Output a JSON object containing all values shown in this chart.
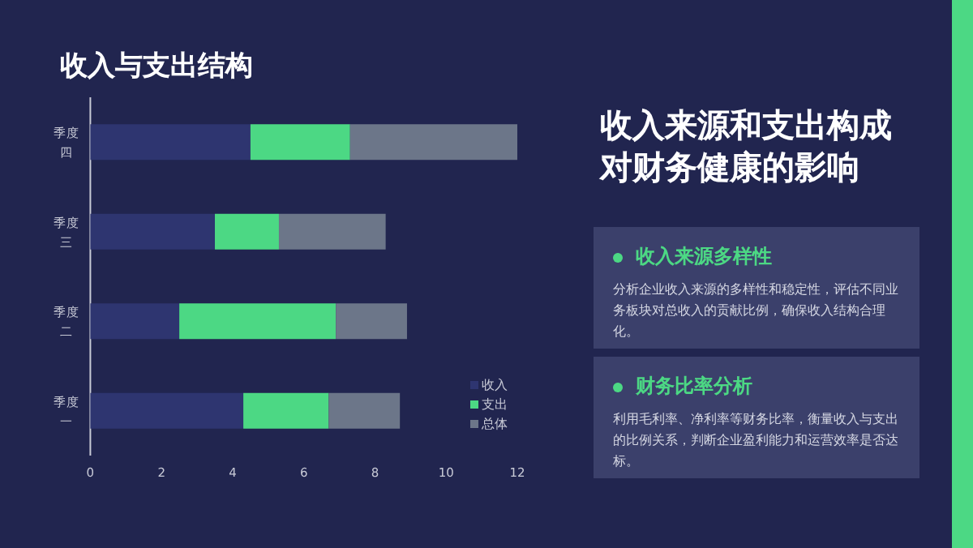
{
  "chart_data": [
    {
      "type": "bar",
      "title": "收入与支出结构",
      "orientation": "horizontal",
      "stacked": true,
      "categories": [
        "季度四",
        "季度三",
        "季度二",
        "季度一"
      ],
      "series": [
        {
          "name": "收入",
          "color": "#2e3570",
          "values": [
            4.5,
            3.5,
            2.5,
            4.3
          ]
        },
        {
          "name": "支出",
          "color": "#4cd884",
          "values": [
            2.8,
            1.8,
            4.4,
            2.4
          ]
        },
        {
          "name": "总体",
          "color": "#6c7689",
          "values": [
            4.7,
            3.0,
            2.0,
            2.0
          ]
        }
      ],
      "xlim": [
        0,
        12
      ],
      "xticks": [
        0,
        2,
        4,
        6,
        8,
        10,
        12
      ],
      "legend": "bottom right"
    },
    {
      "type": "other",
      "title": "收入来源和支出构成对财务健康的影响",
      "annotations": [
        "收入来源多样性",
        "分析企业收入来源的多样性和稳定性，评估不同业务板块对总收入的贡献比例，确保收入结构合理化。",
        "财务比率分析",
        "利用毛利率、净利率等财务比率，衡量收入与支出的比例关系，判断企业盈利能力和运营效率是否达标。"
      ]
    }
  ]
}
